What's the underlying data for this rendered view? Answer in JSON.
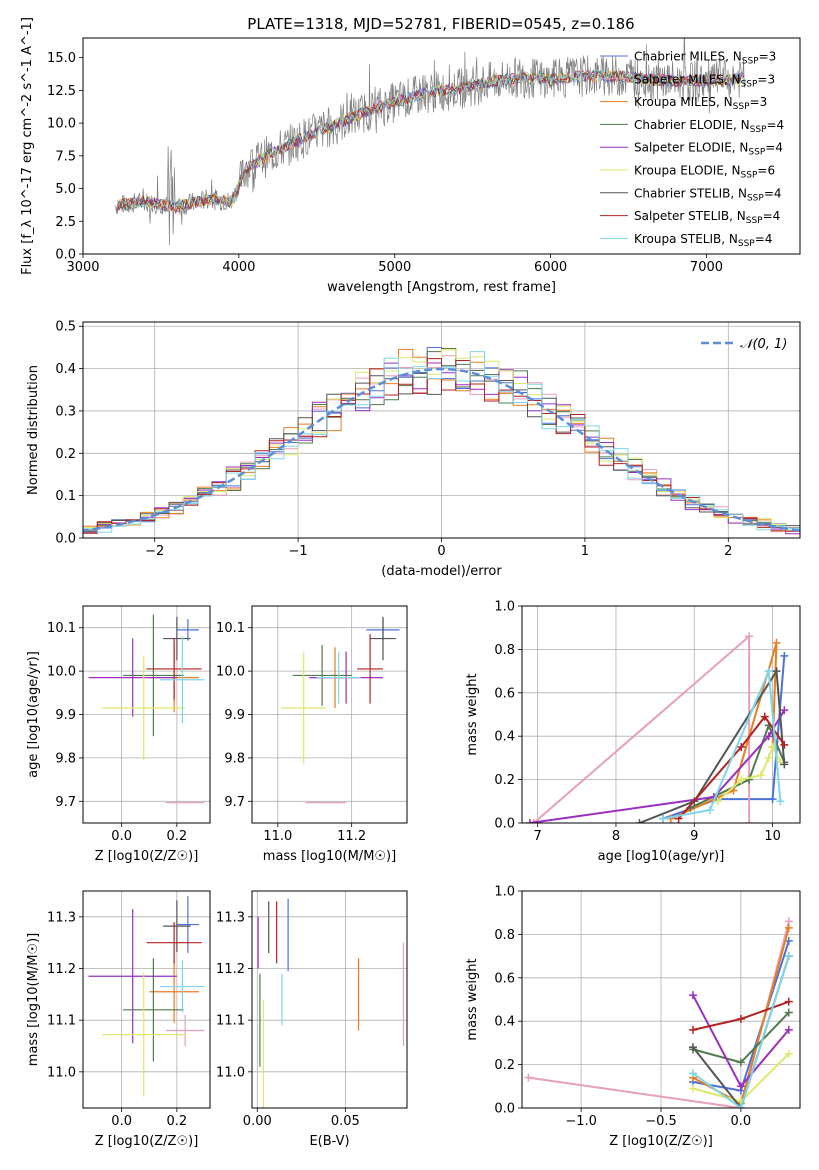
{
  "title": "PLATE=1318, MJD=52781, FIBERID=0545, z=0.186",
  "colors": {
    "chabrier_miles": "#4c72d8",
    "salpeter_miles": "#e8a0b8",
    "kroupa_miles": "#e67e22",
    "chabrier_elodie": "#4f7b4f",
    "salpeter_elodie": "#9b30c0",
    "kroupa_elodie": "#dfe86a",
    "chabrier_stelib": "#555555",
    "salpeter_stelib": "#b22222",
    "kroupa_stelib": "#7fd6e8",
    "normal": "#5b8fd8",
    "data_spectrum": "#7f7f7f"
  },
  "chart_data": [
    {
      "id": "spectrum",
      "type": "line",
      "xlabel": "wavelength [Angstrom, rest frame]",
      "ylabel": "Flux [f_λ 10^-17 erg cm^-2 s^-1 A^-1]",
      "xlim": [
        3000,
        7600
      ],
      "ylim": [
        0,
        16.5
      ],
      "xticks": [
        3000,
        4000,
        5000,
        6000,
        7000
      ],
      "yticks": [
        0.0,
        2.5,
        5.0,
        7.5,
        10.0,
        12.5,
        15.0
      ],
      "legend_position": "top-right",
      "legend": [
        {
          "label": "Chabrier MILES, N",
          "n": 3,
          "color_key": "chabrier_miles"
        },
        {
          "label": "Salpeter MILES, N",
          "n": 3,
          "color_key": "salpeter_miles"
        },
        {
          "label": "Kroupa MILES, N",
          "n": 3,
          "color_key": "kroupa_miles"
        },
        {
          "label": "Chabrier ELODIE, N",
          "n": 4,
          "color_key": "chabrier_elodie"
        },
        {
          "label": "Salpeter ELODIE, N",
          "n": 4,
          "color_key": "salpeter_elodie"
        },
        {
          "label": "Kroupa ELODIE, N",
          "n": 6,
          "color_key": "kroupa_elodie"
        },
        {
          "label": "Chabrier STELIB, N",
          "n": 4,
          "color_key": "chabrier_stelib"
        },
        {
          "label": "Salpeter STELIB, N",
          "n": 4,
          "color_key": "salpeter_stelib"
        },
        {
          "label": "Kroupa STELIB, N",
          "n": 4,
          "color_key": "kroupa_stelib"
        }
      ],
      "legend_subscript": "SSP",
      "continuum": [
        [
          3200,
          3.7
        ],
        [
          3400,
          4.0
        ],
        [
          3600,
          3.6
        ],
        [
          3800,
          4.2
        ],
        [
          3950,
          4.0
        ],
        [
          4050,
          6.6
        ],
        [
          4200,
          7.6
        ],
        [
          4400,
          8.8
        ],
        [
          4600,
          9.8
        ],
        [
          4800,
          10.8
        ],
        [
          5000,
          11.6
        ],
        [
          5200,
          12.3
        ],
        [
          5400,
          12.6
        ],
        [
          5600,
          13.1
        ],
        [
          5800,
          13.5
        ],
        [
          6000,
          13.3
        ],
        [
          6200,
          13.6
        ],
        [
          6400,
          13.6
        ],
        [
          6600,
          13.4
        ],
        [
          6800,
          13.2
        ],
        [
          7000,
          13.2
        ],
        [
          7250,
          13.4
        ]
      ]
    },
    {
      "id": "residuals",
      "type": "histogram",
      "xlabel": "(data-model)/error",
      "ylabel": "Normed distribution",
      "xlim": [
        -2.5,
        2.5
      ],
      "ylim": [
        0,
        0.51
      ],
      "xticks": [
        -2,
        -1,
        0,
        1,
        2
      ],
      "yticks": [
        0.0,
        0.1,
        0.2,
        0.3,
        0.4,
        0.5
      ],
      "legend_position": "top-right",
      "normal_label": "𝒩(0, 1)"
    },
    {
      "id": "age_vs_Z",
      "type": "errorbar",
      "xlabel": "Z [log10(Z/Z☉)]",
      "ylabel": "age [log10(age/yr)]",
      "xlim": [
        -0.14,
        0.32
      ],
      "ylim": [
        9.65,
        10.15
      ],
      "xticks": [
        0.0,
        0.2
      ],
      "yticks": [
        9.7,
        9.8,
        9.9,
        10.0,
        10.1
      ],
      "points": [
        {
          "model": "chabrier_miles",
          "x": 0.24,
          "y": 10.095,
          "xerr": 0.04,
          "yerr": 0.025
        },
        {
          "model": "salpeter_miles",
          "x": 0.23,
          "y": 9.697,
          "xerr": 0.07,
          "yerr": 0.0
        },
        {
          "model": "kroupa_miles",
          "x": 0.19,
          "y": 9.985,
          "xerr": 0.09,
          "yerr": 0.08
        },
        {
          "model": "chabrier_elodie",
          "x": 0.115,
          "y": 9.99,
          "xerr": 0.11,
          "yerr": 0.14
        },
        {
          "model": "salpeter_elodie",
          "x": 0.04,
          "y": 9.985,
          "xerr": 0.16,
          "yerr": 0.09
        },
        {
          "model": "kroupa_elodie",
          "x": 0.08,
          "y": 9.915,
          "xerr": 0.15,
          "yerr": 0.12
        },
        {
          "model": "chabrier_stelib",
          "x": 0.2,
          "y": 10.075,
          "xerr": 0.05,
          "yerr": 0.05
        },
        {
          "model": "salpeter_stelib",
          "x": 0.19,
          "y": 10.005,
          "xerr": 0.1,
          "yerr": 0.07
        },
        {
          "model": "kroupa_stelib",
          "x": 0.22,
          "y": 9.98,
          "xerr": 0.08,
          "yerr": 0.1
        }
      ]
    },
    {
      "id": "age_vs_mass",
      "type": "errorbar",
      "xlabel": "mass [log10(M/M☉)]",
      "ylabel": "",
      "xlim": [
        10.93,
        11.35
      ],
      "ylim": [
        9.65,
        10.15
      ],
      "xticks": [
        11.0,
        11.2
      ],
      "yticks": [
        9.7,
        9.8,
        9.9,
        10.0,
        10.1
      ],
      "points": [
        {
          "model": "chabrier_miles",
          "x": 11.285,
          "y": 10.095,
          "xerr": 0.045,
          "yerr": 0.025
        },
        {
          "model": "salpeter_miles",
          "x": 11.13,
          "y": 9.697,
          "xerr": 0.055,
          "yerr": 0.0
        },
        {
          "model": "kroupa_miles",
          "x": 11.155,
          "y": 9.985,
          "xerr": 0.055,
          "yerr": 0.07
        },
        {
          "model": "chabrier_elodie",
          "x": 11.12,
          "y": 9.99,
          "xerr": 0.08,
          "yerr": 0.07
        },
        {
          "model": "salpeter_elodie",
          "x": 11.185,
          "y": 9.985,
          "xerr": 0.1,
          "yerr": 0.06
        },
        {
          "model": "kroupa_elodie",
          "x": 11.07,
          "y": 9.915,
          "xerr": 0.06,
          "yerr": 0.13
        },
        {
          "model": "chabrier_stelib",
          "x": 11.285,
          "y": 10.075,
          "xerr": 0.035,
          "yerr": 0.05
        },
        {
          "model": "salpeter_stelib",
          "x": 11.25,
          "y": 10.005,
          "xerr": 0.035,
          "yerr": 0.08
        },
        {
          "model": "kroupa_stelib",
          "x": 11.165,
          "y": 9.985,
          "xerr": 0.06,
          "yerr": 0.06
        }
      ]
    },
    {
      "id": "weight_vs_age",
      "type": "line",
      "xlabel": "age [log10(age/yr)]",
      "ylabel": "mass weight",
      "xlim": [
        6.8,
        10.35
      ],
      "ylim": [
        0,
        1
      ],
      "xticks": [
        7,
        8,
        9,
        10
      ],
      "yticks": [
        0.0,
        0.2,
        0.4,
        0.6,
        0.8,
        1.0
      ],
      "series": [
        {
          "model": "chabrier_miles",
          "values": [
            [
              8.6,
              0.02
            ],
            [
              9.3,
              0.11
            ],
            [
              10.0,
              0.11
            ],
            [
              10.15,
              0.77
            ]
          ]
        },
        {
          "model": "salpeter_miles",
          "values": [
            [
              6.95,
              0.0
            ],
            [
              9.7,
              0.86
            ],
            [
              9.7,
              0.0
            ]
          ]
        },
        {
          "model": "kroupa_miles",
          "values": [
            [
              8.7,
              0.02
            ],
            [
              9.5,
              0.15
            ],
            [
              10.05,
              0.83
            ],
            [
              10.0,
              0.35
            ]
          ]
        },
        {
          "model": "chabrier_elodie",
          "values": [
            [
              8.95,
              0.07
            ],
            [
              9.7,
              0.2
            ],
            [
              9.95,
              0.45
            ],
            [
              10.15,
              0.28
            ]
          ]
        },
        {
          "model": "salpeter_elodie",
          "values": [
            [
              6.9,
              0.0
            ],
            [
              9.25,
              0.12
            ],
            [
              9.95,
              0.4
            ],
            [
              10.15,
              0.52
            ]
          ]
        },
        {
          "model": "kroupa_elodie",
          "values": [
            [
              9.3,
              0.1
            ],
            [
              9.6,
              0.2
            ],
            [
              9.85,
              0.22
            ],
            [
              9.95,
              0.3
            ],
            [
              10.0,
              0.35
            ],
            [
              10.1,
              0.28
            ]
          ]
        },
        {
          "model": "chabrier_stelib",
          "values": [
            [
              8.3,
              0.0
            ],
            [
              9.0,
              0.1
            ],
            [
              10.05,
              0.7
            ],
            [
              10.15,
              0.27
            ]
          ]
        },
        {
          "model": "salpeter_stelib",
          "values": [
            [
              8.8,
              0.02
            ],
            [
              9.6,
              0.35
            ],
            [
              9.9,
              0.49
            ],
            [
              10.15,
              0.36
            ]
          ]
        },
        {
          "model": "kroupa_stelib",
          "values": [
            [
              8.6,
              0.02
            ],
            [
              9.2,
              0.06
            ],
            [
              9.95,
              0.7
            ],
            [
              10.1,
              0.1
            ]
          ]
        }
      ]
    },
    {
      "id": "mass_vs_Z",
      "type": "errorbar",
      "xlabel": "Z [log10(Z/Z☉)]",
      "ylabel": "mass [log10(M/M☉)]",
      "xlim": [
        -0.14,
        0.32
      ],
      "ylim": [
        10.93,
        11.35
      ],
      "xticks": [
        0.0,
        0.2
      ],
      "yticks": [
        11.0,
        11.1,
        11.2,
        11.3
      ],
      "points": [
        {
          "model": "chabrier_miles",
          "x": 0.24,
          "y": 11.285,
          "xerr": 0.04,
          "yerr": 0.055
        },
        {
          "model": "salpeter_miles",
          "x": 0.23,
          "y": 11.08,
          "xerr": 0.07,
          "yerr": 0.03
        },
        {
          "model": "kroupa_miles",
          "x": 0.19,
          "y": 11.155,
          "xerr": 0.09,
          "yerr": 0.06
        },
        {
          "model": "chabrier_elodie",
          "x": 0.115,
          "y": 11.12,
          "xerr": 0.11,
          "yerr": 0.1
        },
        {
          "model": "salpeter_elodie",
          "x": 0.04,
          "y": 11.185,
          "xerr": 0.16,
          "yerr": 0.13
        },
        {
          "model": "kroupa_elodie",
          "x": 0.08,
          "y": 11.072,
          "xerr": 0.15,
          "yerr": 0.12
        },
        {
          "model": "chabrier_stelib",
          "x": 0.2,
          "y": 11.282,
          "xerr": 0.05,
          "yerr": 0.05
        },
        {
          "model": "salpeter_stelib",
          "x": 0.19,
          "y": 11.25,
          "xerr": 0.1,
          "yerr": 0.04
        },
        {
          "model": "kroupa_stelib",
          "x": 0.22,
          "y": 11.165,
          "xerr": 0.08,
          "yerr": 0.05
        }
      ]
    },
    {
      "id": "mass_vs_ebv",
      "type": "errorbar",
      "xlabel": "E(B-V)",
      "ylabel": "",
      "xlim": [
        -0.003,
        0.085
      ],
      "ylim": [
        10.93,
        11.35
      ],
      "xticks": [
        0.0,
        0.05
      ],
      "yticks": [
        11.0,
        11.1,
        11.2,
        11.3
      ],
      "points": [
        {
          "model": "chabrier_miles",
          "x": 0.0175,
          "y": 11.265,
          "xerr": 0,
          "yerr": 0.07
        },
        {
          "model": "salpeter_miles",
          "x": 0.083,
          "y": 11.15,
          "xerr": 0,
          "yerr": 0.1
        },
        {
          "model": "kroupa_miles",
          "x": 0.0575,
          "y": 11.15,
          "xerr": 0,
          "yerr": 0.07
        },
        {
          "model": "chabrier_elodie",
          "x": 0.0015,
          "y": 11.1,
          "xerr": 0,
          "yerr": 0.09
        },
        {
          "model": "salpeter_elodie",
          "x": 0.0005,
          "y": 11.25,
          "xerr": 0,
          "yerr": 0.05
        },
        {
          "model": "kroupa_elodie",
          "x": 0.0035,
          "y": 11.0,
          "xerr": 0,
          "yerr": 0.14
        },
        {
          "model": "chabrier_stelib",
          "x": 0.0065,
          "y": 11.28,
          "xerr": 0,
          "yerr": 0.05
        },
        {
          "model": "salpeter_stelib",
          "x": 0.011,
          "y": 11.27,
          "xerr": 0,
          "yerr": 0.06
        },
        {
          "model": "kroupa_stelib",
          "x": 0.014,
          "y": 11.14,
          "xerr": 0,
          "yerr": 0.05
        }
      ]
    },
    {
      "id": "weight_vs_Z",
      "type": "line",
      "xlabel": "Z [log10(Z/Z☉)]",
      "ylabel": "mass weight",
      "xlim": [
        -1.37,
        0.37
      ],
      "ylim": [
        0,
        1
      ],
      "xticks": [
        -1.0,
        -0.5,
        0.0
      ],
      "yticks": [
        0.0,
        0.2,
        0.4,
        0.6,
        0.8,
        1.0
      ],
      "series": [
        {
          "model": "chabrier_miles",
          "values": [
            [
              -0.3,
              0.12
            ],
            [
              0.0,
              0.08
            ],
            [
              0.3,
              0.77
            ]
          ]
        },
        {
          "model": "salpeter_miles",
          "values": [
            [
              -1.33,
              0.14
            ],
            [
              0.0,
              0.0
            ],
            [
              0.3,
              0.86
            ]
          ]
        },
        {
          "model": "kroupa_miles",
          "values": [
            [
              -0.3,
              0.14
            ],
            [
              0.0,
              0.02
            ],
            [
              0.3,
              0.83
            ]
          ]
        },
        {
          "model": "chabrier_elodie",
          "values": [
            [
              -0.3,
              0.27
            ],
            [
              0.0,
              0.21
            ],
            [
              0.3,
              0.44
            ]
          ]
        },
        {
          "model": "salpeter_elodie",
          "values": [
            [
              -0.3,
              0.52
            ],
            [
              0.0,
              0.1
            ],
            [
              0.3,
              0.36
            ]
          ]
        },
        {
          "model": "kroupa_elodie",
          "values": [
            [
              -0.3,
              0.09
            ],
            [
              0.0,
              0.03
            ],
            [
              0.3,
              0.25
            ]
          ]
        },
        {
          "model": "chabrier_stelib",
          "values": [
            [
              -0.3,
              0.28
            ],
            [
              0.0,
              0.0
            ],
            [
              0.3,
              0.7
            ]
          ]
        },
        {
          "model": "salpeter_stelib",
          "values": [
            [
              -0.3,
              0.36
            ],
            [
              0.0,
              0.41
            ],
            [
              0.3,
              0.49
            ]
          ]
        },
        {
          "model": "kroupa_stelib",
          "values": [
            [
              -0.3,
              0.16
            ],
            [
              0.0,
              0.0
            ],
            [
              0.3,
              0.7
            ]
          ]
        }
      ]
    }
  ]
}
